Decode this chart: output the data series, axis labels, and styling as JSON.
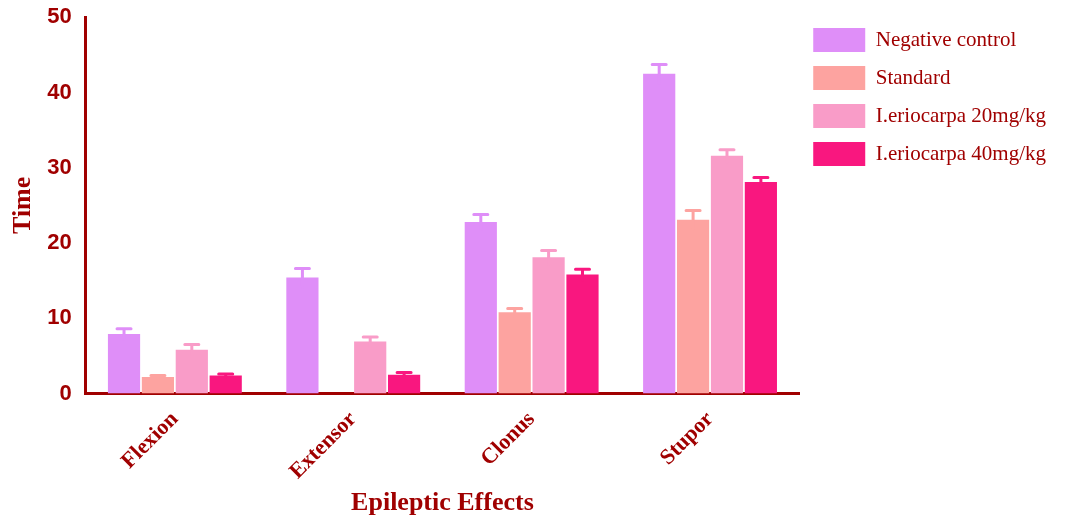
{
  "chart_data": {
    "type": "bar",
    "xlabel": "Epileptic Effects",
    "ylabel": "Time",
    "categories": [
      "Flexion",
      "Extensor",
      "Clonus",
      "Stupor"
    ],
    "series": [
      {
        "name": "Negative control",
        "color": "#df8ef8",
        "values": [
          7.9,
          15.4,
          22.8,
          42.5
        ],
        "errors": [
          0.7,
          1.2,
          1.0,
          1.2
        ]
      },
      {
        "name": "Standard",
        "color": "#fda3a0",
        "values": [
          2.2,
          null,
          10.8,
          23.1
        ],
        "errors": [
          0.2,
          null,
          0.5,
          1.2
        ]
      },
      {
        "name": "I.eriocarpa 20mg/kg",
        "color": "#f99cc8",
        "values": [
          5.8,
          6.9,
          18.1,
          31.6
        ],
        "errors": [
          0.7,
          0.6,
          0.9,
          0.8
        ]
      },
      {
        "name": "I.eriocarpa 40mg/kg",
        "color": "#f9177f",
        "values": [
          2.4,
          2.5,
          15.8,
          28.1
        ],
        "errors": [
          0.2,
          0.3,
          0.7,
          0.6
        ]
      }
    ],
    "ylim": [
      0,
      50
    ],
    "yticks": [
      0,
      10,
      20,
      30,
      40,
      50
    ],
    "grid": false,
    "legend": "top right"
  }
}
